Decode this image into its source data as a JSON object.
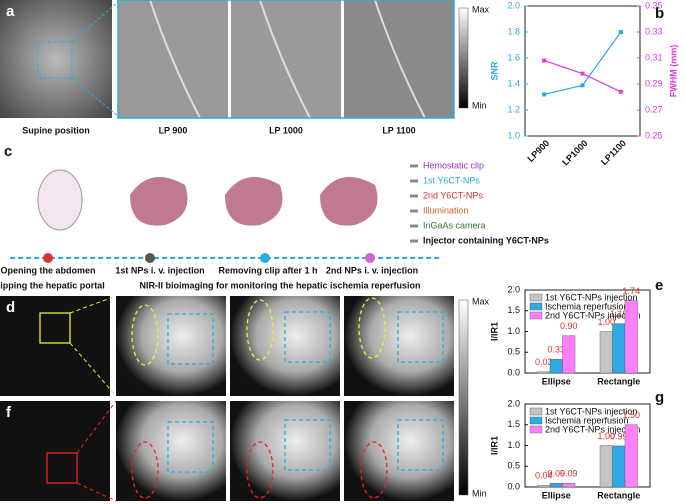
{
  "panel_labels": [
    "a",
    "b",
    "c",
    "d",
    "e",
    "f",
    "g"
  ],
  "panel_a": {
    "captions": [
      "Supine position",
      "LP 900",
      "LP 1000",
      "LP 1100"
    ],
    "colorbar": [
      "Max",
      "Min"
    ]
  },
  "panel_c": {
    "legend": [
      "Hemostatic clip",
      "1st Y6CT-NPs",
      "2nd Y6CT-NPs",
      "Illumination",
      "InGaAs camera",
      "Injector containing Y6CT-NPs"
    ],
    "steps": [
      "Opening the abdomen",
      "1st NPs i. v. injection",
      "Removing clip after 1 h",
      "2nd NPs i. v. injection"
    ],
    "notes": [
      "Clipping the hepatic portal",
      "NIR-II bioimaging for monitoring the hepatic ischemia reperfusion"
    ]
  },
  "panel_df": {
    "colorbar": [
      "Max",
      "Min"
    ]
  },
  "chart_data": [
    {
      "type": "line",
      "categories": [
        "LP900",
        "LP1000",
        "LP1100"
      ],
      "ylabel": "SNR",
      "y2label": "FWHM (mm)",
      "series": [
        {
          "name": "SNR",
          "color": "#29abe2",
          "values": [
            1.32,
            1.39,
            1.8
          ]
        },
        {
          "name": "FWHM",
          "color": "#e03ae0",
          "values": [
            0.308,
            0.298,
            0.284
          ],
          "axis": "y2"
        }
      ],
      "ylim": [
        1.0,
        2.0
      ],
      "yticks": [
        {
          "value": 1.0,
          "label": "1.0"
        },
        1.2,
        1.4,
        1.6,
        1.8,
        {
          "value": 2.0,
          "label": "2.0"
        }
      ],
      "y2lim": [
        0.25,
        0.35
      ],
      "y2ticks": [
        0.25,
        0.27,
        0.29,
        0.31,
        0.33,
        0.35
      ]
    },
    {
      "type": "bar",
      "categories": [
        "Ellipse",
        "Rectangle"
      ],
      "ylabel": "I/IR1",
      "series": [
        {
          "name": "1st Y6CT-NPs injection",
          "color": "#c4c4c4",
          "values": [
            0.03,
            1.0
          ],
          "value_labels": [
            "0.03",
            "1.00"
          ]
        },
        {
          "name": "Ischemia reperfusion",
          "color": "#2ea9e3",
          "values": [
            0.33,
            1.19
          ],
          "value_labels": [
            "0.33",
            "1.19"
          ]
        },
        {
          "name": "2nd Y6CT-NPs injection",
          "color": "#ff80ff",
          "values": [
            0.9,
            1.74
          ],
          "value_labels": [
            "0.90",
            "1.74"
          ]
        }
      ],
      "ylim": [
        0,
        2.0
      ],
      "yticks": [
        {
          "value": 0,
          "label": "0.0"
        },
        0.5,
        {
          "value": 1.0,
          "label": "1.0"
        },
        1.5,
        {
          "value": 2.0,
          "label": "2.0"
        }
      ]
    },
    {
      "type": "bar",
      "categories": [
        "Ellipse",
        "Rectangle"
      ],
      "ylabel": "I/IR1",
      "series": [
        {
          "name": "1st Y6CT-NPs injection",
          "color": "#c4c4c4",
          "values": [
            0.04,
            1.0
          ],
          "value_labels": [
            "0.04",
            "1.00"
          ]
        },
        {
          "name": "Ischemia reperfusion",
          "color": "#2ea9e3",
          "values": [
            0.09,
            0.99
          ],
          "value_labels": [
            "0.09",
            "0.99"
          ]
        },
        {
          "name": "2nd Y6CT-NPs injection",
          "color": "#ff80ff",
          "values": [
            0.09,
            1.5
          ],
          "value_labels": [
            "0.09",
            "1.50"
          ]
        }
      ],
      "ylim": [
        0,
        2.0
      ],
      "yticks": [
        {
          "value": 0,
          "label": "0.0"
        },
        0.5,
        {
          "value": 1.0,
          "label": "1.0"
        },
        1.5,
        {
          "value": 2.0,
          "label": "2.0"
        }
      ]
    }
  ]
}
